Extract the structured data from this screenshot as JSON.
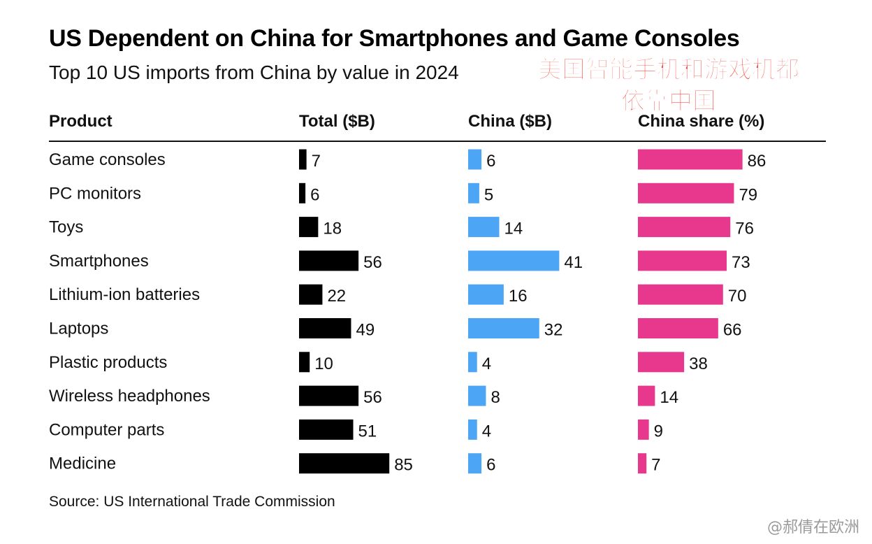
{
  "header": {
    "title": "US Dependent on China for Smartphones and Game Consoles",
    "subtitle": "Top 10 US imports from China by value in 2024",
    "cn_note_line1": "美国智能手机和游戏机都",
    "cn_note_line2": "依靠中国"
  },
  "columns": {
    "product": "Product",
    "total": "Total ($B)",
    "china": "China ($B)",
    "share": "China share (%)"
  },
  "chart_data": {
    "type": "bar",
    "title": "US Dependent on China for Smartphones and Game Consoles",
    "subtitle": "Top 10 US imports from China by value in 2024",
    "categories": [
      "Game consoles",
      "PC monitors",
      "Toys",
      "Smartphones",
      "Lithium-ion batteries",
      "Laptops",
      "Plastic products",
      "Wireless headphones",
      "Computer parts",
      "Medicine"
    ],
    "series": [
      {
        "name": "Total ($B)",
        "color": "#000000",
        "values": [
          7,
          6,
          18,
          56,
          22,
          49,
          10,
          56,
          51,
          85
        ]
      },
      {
        "name": "China ($B)",
        "color": "#4da6f5",
        "values": [
          6,
          5,
          14,
          41,
          16,
          32,
          4,
          8,
          4,
          6
        ]
      },
      {
        "name": "China share (%)",
        "color": "#e8388e",
        "values": [
          86,
          79,
          76,
          73,
          70,
          66,
          38,
          14,
          9,
          7
        ]
      }
    ]
  },
  "footer": {
    "source": "Source: US International Trade Commission",
    "watermark": "@郝倩在欧洲"
  }
}
